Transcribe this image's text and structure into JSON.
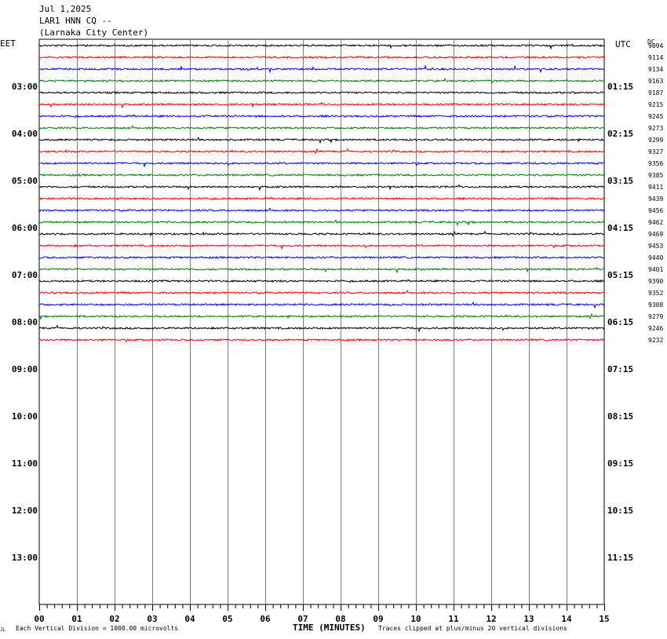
{
  "header": {
    "date": "Jul 1,2025",
    "station": "LAR1 HNN CQ --",
    "location": "(Larnaka City Center)"
  },
  "left_zone": "EET",
  "right_zone": "UTC",
  "dc_label": "DC",
  "footer": {
    "scale": "Each Vertical Division = 1000.00 microvolts",
    "xlabel": "TIME (MINUTES)",
    "clip": "Traces clipped at plus/minus 20 vertical divisions",
    "corner": "JL"
  },
  "colors": {
    "cycle": [
      "#000000",
      "#ff0000",
      "#0000ff",
      "#008000"
    ],
    "grid": "#808080"
  },
  "chart_data": {
    "type": "line",
    "x_ticks": [
      "00",
      "01",
      "02",
      "03",
      "04",
      "05",
      "06",
      "07",
      "08",
      "09",
      "10",
      "11",
      "12",
      "13",
      "14",
      "15"
    ],
    "xlim": [
      0,
      15
    ],
    "hour_labels_left": [
      "03:00",
      "04:00",
      "05:00",
      "06:00",
      "07:00",
      "08:00",
      "09:00",
      "10:00",
      "11:00",
      "12:00",
      "13:00"
    ],
    "hour_labels_right": [
      "01:15",
      "02:15",
      "03:15",
      "04:15",
      "05:15",
      "06:15",
      "07:15",
      "08:15",
      "09:15",
      "10:15",
      "11:15"
    ],
    "row_count": 48,
    "trace_dc_offsets": [
      9094,
      9114,
      9134,
      9163,
      9187,
      9215,
      9245,
      9273,
      9299,
      9327,
      9356,
      9385,
      9411,
      9439,
      9456,
      9462,
      9469,
      9453,
      9440,
      9401,
      9390,
      9352,
      9308,
      9279,
      9246,
      9232
    ]
  }
}
